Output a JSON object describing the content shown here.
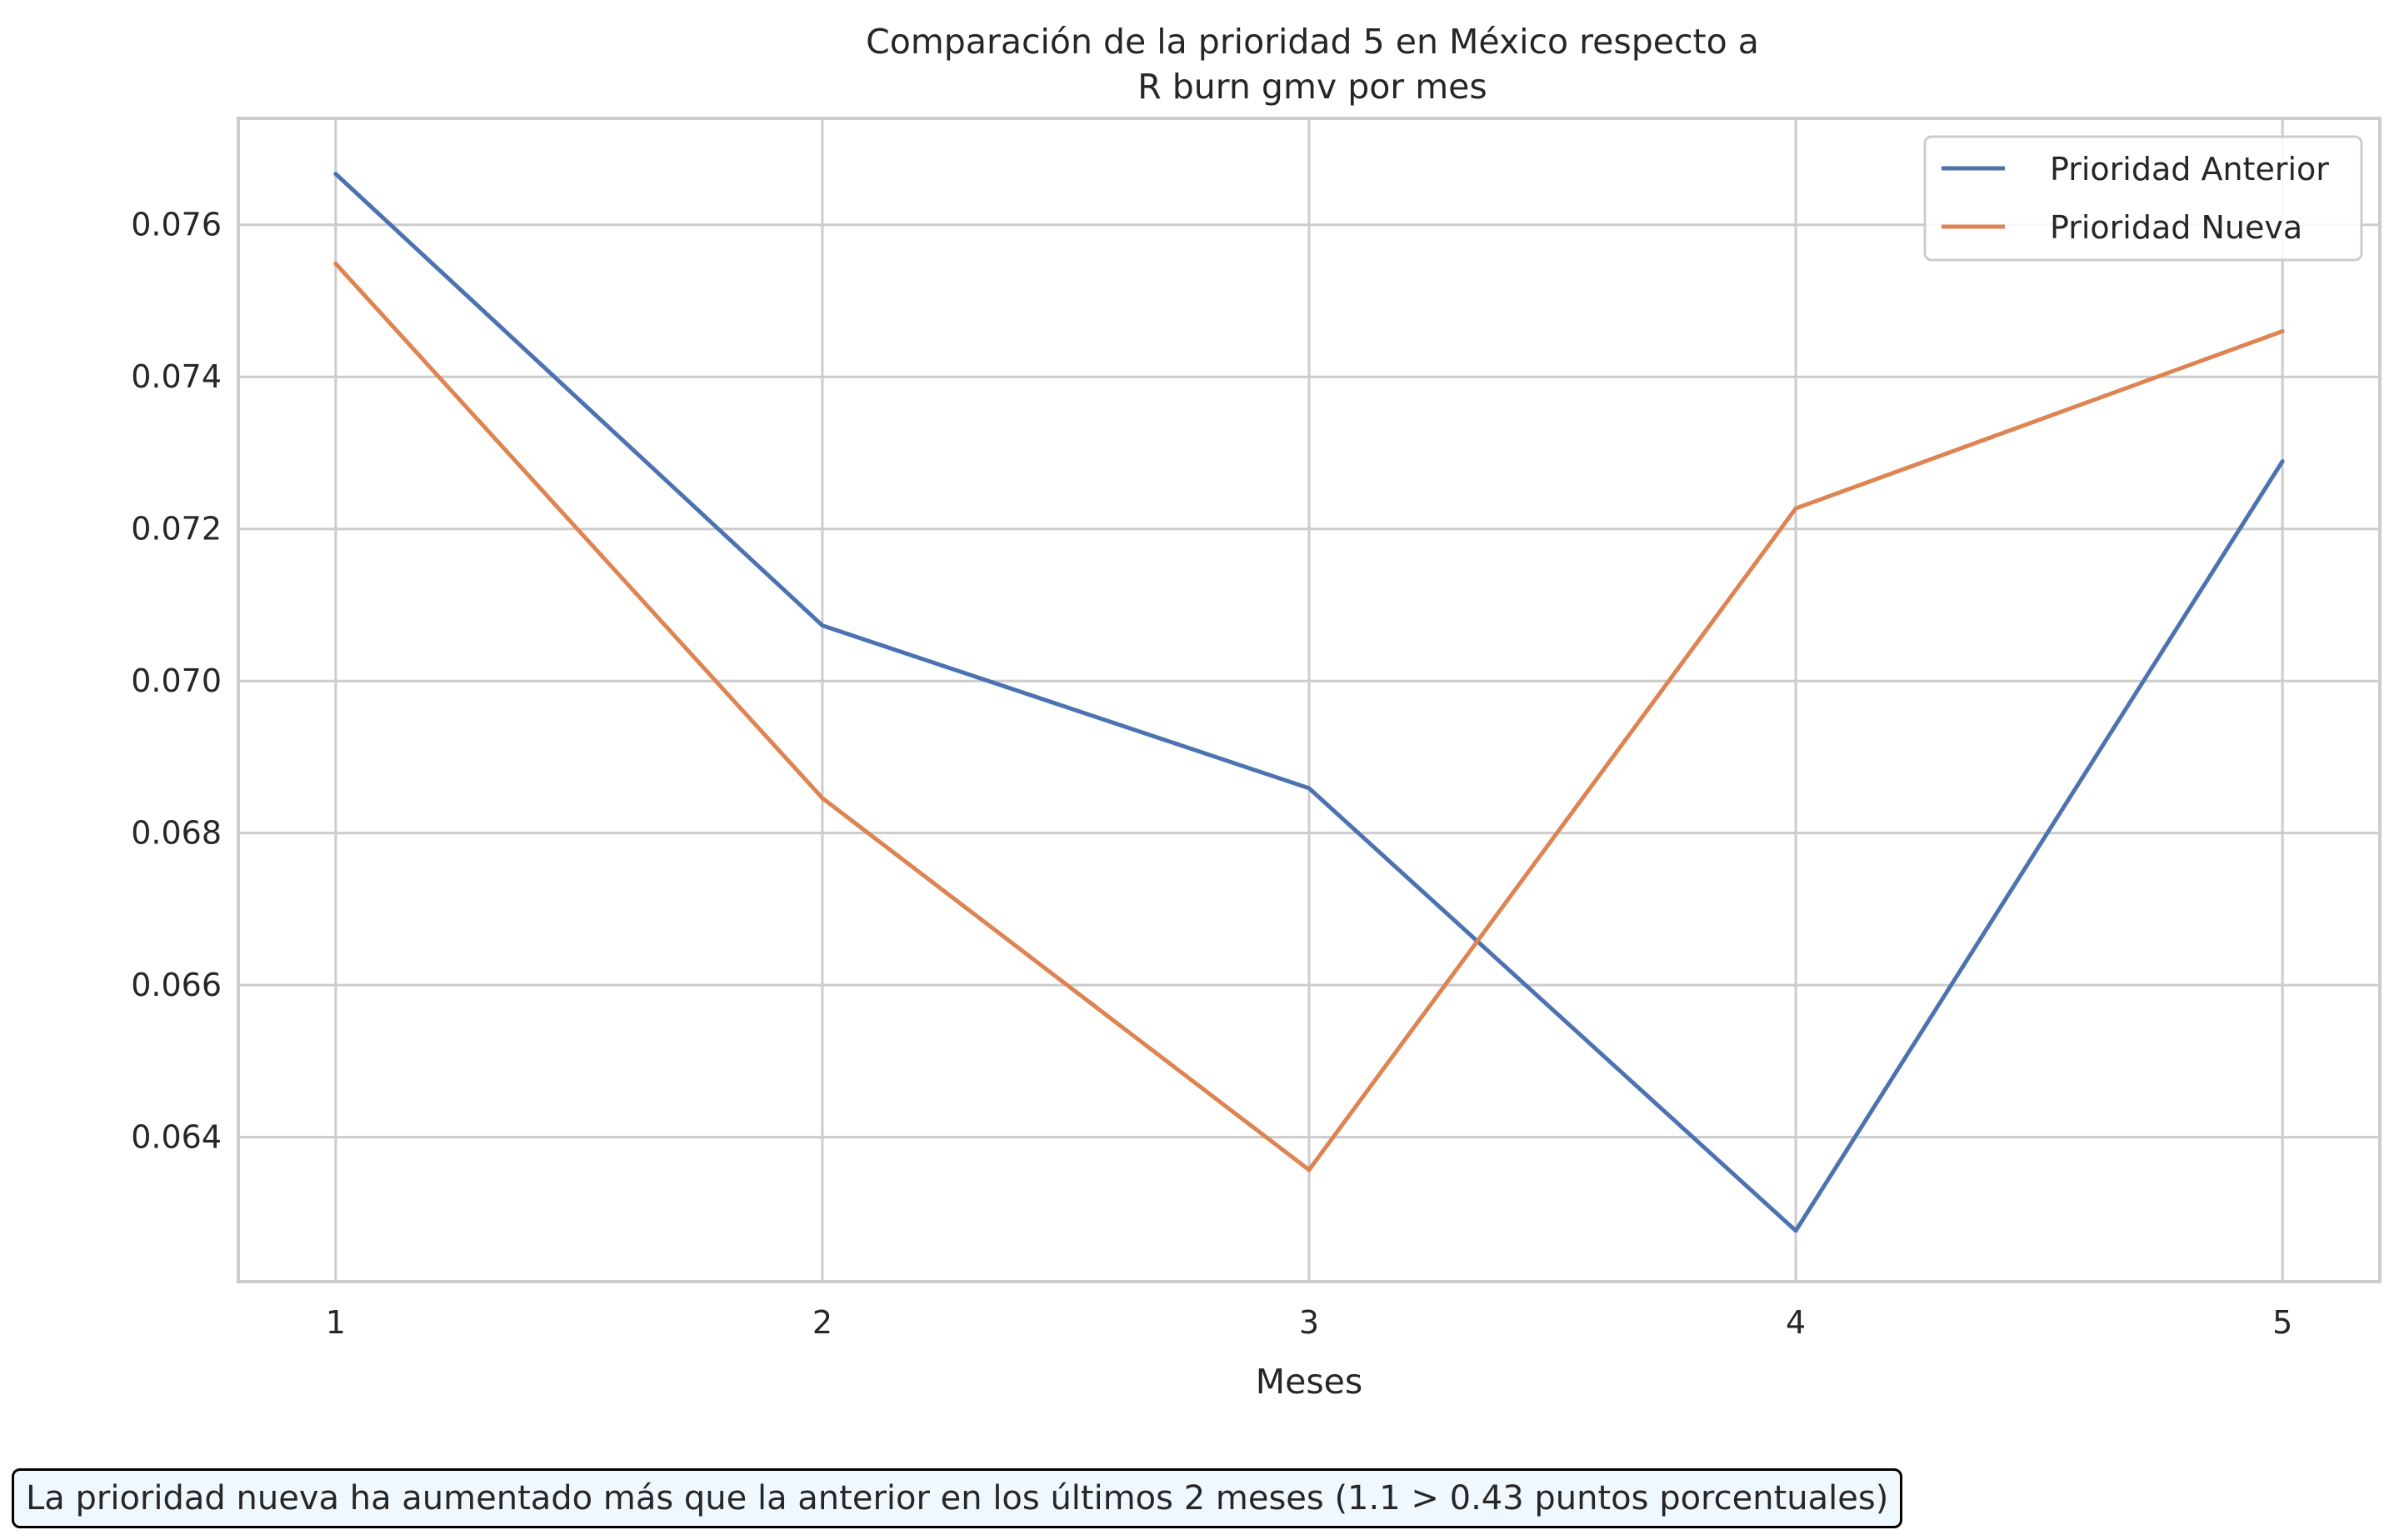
{
  "chart_data": {
    "type": "line",
    "title_lines": [
      "Comparación de la prioridad 5 en México respecto a",
      "R burn gmv por mes"
    ],
    "xlabel": "Meses",
    "ylabel": "",
    "x": [
      1,
      2,
      3,
      4,
      5
    ],
    "x_tick_labels": [
      "1",
      "2",
      "3",
      "4",
      "5"
    ],
    "y_ticks": [
      0.064,
      0.066,
      0.068,
      0.07,
      0.072,
      0.074,
      0.076
    ],
    "y_tick_labels": [
      "0.064",
      "0.066",
      "0.068",
      "0.070",
      "0.072",
      "0.074",
      "0.076"
    ],
    "xlim": [
      0.8,
      5.2
    ],
    "ylim": [
      0.0621,
      0.0774
    ],
    "grid": true,
    "legend_position": "top-right",
    "series": [
      {
        "name": "Prioridad Anterior",
        "color": "#4c72b0",
        "values": [
          0.07667,
          0.07073,
          0.06859,
          0.06277,
          0.07289
        ]
      },
      {
        "name": "Prioridad Nueva",
        "color": "#dd8452",
        "values": [
          0.07549,
          0.06846,
          0.06357,
          0.07227,
          0.0746
        ]
      }
    ],
    "annotation": "La prioridad nueva ha aumentado más que la anterior en los últimos 2 meses (1.1 > 0.43 puntos porcentuales)"
  }
}
